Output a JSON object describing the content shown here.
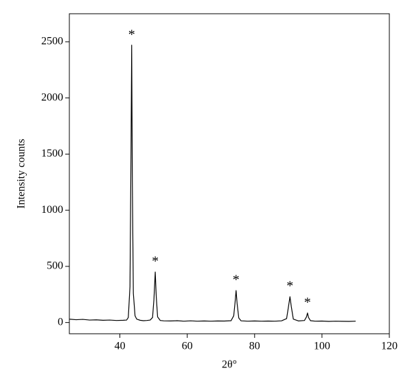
{
  "chart_data": {
    "type": "line",
    "xlabel": "2θ°",
    "ylabel": "Intensity counts",
    "x": [
      25,
      27,
      29,
      31,
      33,
      35,
      37,
      39,
      41,
      42,
      42.5,
      43,
      43.3,
      43.5,
      43.7,
      44,
      44.5,
      45,
      46,
      47,
      48,
      49,
      49.7,
      50.1,
      50.5,
      50.8,
      51.2,
      52,
      53,
      55,
      57,
      59,
      61,
      63,
      65,
      67,
      69,
      71,
      73,
      73.8,
      74.2,
      74.5,
      74.8,
      75.3,
      76,
      78,
      80,
      82,
      84,
      86,
      88,
      89.5,
      90.1,
      90.5,
      90.9,
      91.5,
      93,
      94.8,
      95.4,
      95.7,
      96,
      96.6,
      98,
      100,
      102,
      104,
      106,
      108,
      110
    ],
    "series": [
      {
        "color": "#000000",
        "values": [
          30,
          25,
          28,
          22,
          24,
          20,
          22,
          18,
          20,
          22,
          45,
          320,
          1500,
          2470,
          1250,
          260,
          60,
          30,
          20,
          16,
          18,
          22,
          45,
          200,
          450,
          230,
          50,
          18,
          15,
          14,
          16,
          12,
          15,
          12,
          14,
          12,
          14,
          13,
          16,
          60,
          180,
          285,
          170,
          40,
          15,
          12,
          14,
          12,
          13,
          12,
          15,
          35,
          150,
          230,
          140,
          30,
          14,
          18,
          50,
          85,
          45,
          16,
          12,
          13,
          10,
          12,
          11,
          10,
          12
        ]
      }
    ],
    "annotations": [
      {
        "text": "*",
        "x": 43.5
      },
      {
        "text": "*",
        "x": 50.5
      },
      {
        "text": "*",
        "x": 74.5
      },
      {
        "text": "*",
        "x": 90.5
      },
      {
        "text": "*",
        "x": 95.7
      }
    ],
    "xlim": [
      25,
      120
    ],
    "xticks": [
      40,
      60,
      80,
      100,
      120
    ],
    "ylim": [
      -100,
      2750
    ],
    "yticks": [
      0,
      500,
      1000,
      1500,
      2000,
      2500
    ]
  }
}
